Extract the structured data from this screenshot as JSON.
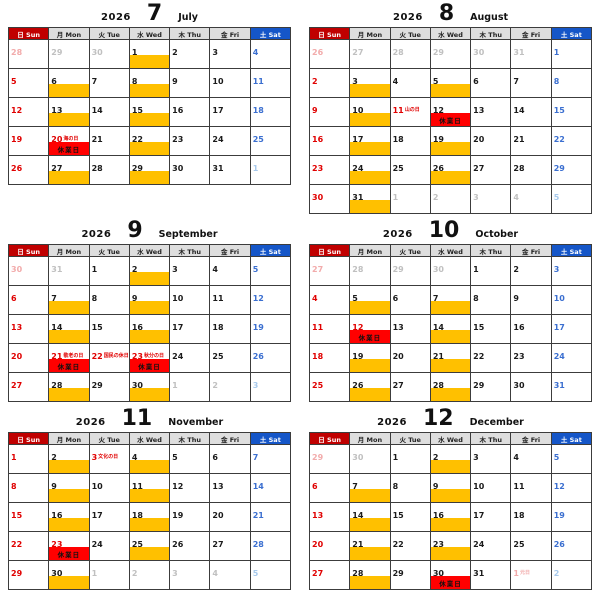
{
  "page": {
    "background": "#FFFFFF"
  },
  "colors": {
    "sunday_header_bg": "#C00000",
    "saturday_header_bg": "#1556C8",
    "weekday_header_bg": "#DEDEDE",
    "event_bar": "#FFC000",
    "closed_bar": "#FF0000",
    "sunday_text": "#E00000",
    "saturday_text": "#3B6FD0",
    "outmonth_text": "#C0C0C0",
    "outmonth_sunday_text": "#F2ABAB",
    "outmonth_saturday_text": "#A7C9EC"
  },
  "day_headers": [
    {
      "label": "日 Sun",
      "type": "sun"
    },
    {
      "label": "月 Mon",
      "type": "weekday"
    },
    {
      "label": "火 Tue",
      "type": "weekday"
    },
    {
      "label": "水 Wed",
      "type": "weekday"
    },
    {
      "label": "木 Thu",
      "type": "weekday"
    },
    {
      "label": "金 Fri",
      "type": "weekday"
    },
    {
      "label": "土 Sat",
      "type": "sat"
    }
  ],
  "months": [
    {
      "year": "2026",
      "number": "7",
      "name": "July",
      "weeks": [
        [
          {
            "day": "28",
            "type": "prevSun"
          },
          {
            "day": "29",
            "type": "prev"
          },
          {
            "day": "30",
            "type": "prev"
          },
          {
            "day": "1",
            "bar": "yellow"
          },
          {
            "day": "2"
          },
          {
            "day": "3"
          },
          {
            "day": "4",
            "type": "sat"
          }
        ],
        [
          {
            "day": "5",
            "type": "sun"
          },
          {
            "day": "6",
            "bar": "yellow"
          },
          {
            "day": "7"
          },
          {
            "day": "8",
            "bar": "yellow"
          },
          {
            "day": "9"
          },
          {
            "day": "10"
          },
          {
            "day": "11",
            "type": "sat"
          }
        ],
        [
          {
            "day": "12",
            "type": "sun"
          },
          {
            "day": "13",
            "bar": "yellow"
          },
          {
            "day": "14"
          },
          {
            "day": "15",
            "bar": "yellow"
          },
          {
            "day": "16"
          },
          {
            "day": "17"
          },
          {
            "day": "18",
            "type": "sat"
          }
        ],
        [
          {
            "day": "19",
            "type": "sun"
          },
          {
            "day": "20",
            "type": "holiday",
            "holiday": "海の日",
            "bar": "red",
            "bar_label": "休業日"
          },
          {
            "day": "21"
          },
          {
            "day": "22",
            "bar": "yellow"
          },
          {
            "day": "23"
          },
          {
            "day": "24"
          },
          {
            "day": "25",
            "type": "sat"
          }
        ],
        [
          {
            "day": "26",
            "type": "sun"
          },
          {
            "day": "27",
            "bar": "yellow"
          },
          {
            "day": "28"
          },
          {
            "day": "29",
            "bar": "yellow"
          },
          {
            "day": "30"
          },
          {
            "day": "31"
          },
          {
            "day": "1",
            "type": "nextSat"
          }
        ]
      ]
    },
    {
      "year": "2026",
      "number": "8",
      "name": "August",
      "weeks": [
        [
          {
            "day": "26",
            "type": "prevSun"
          },
          {
            "day": "27",
            "type": "prev"
          },
          {
            "day": "28",
            "type": "prev"
          },
          {
            "day": "29",
            "type": "prev"
          },
          {
            "day": "30",
            "type": "prev"
          },
          {
            "day": "31",
            "type": "prev"
          },
          {
            "day": "1",
            "type": "sat"
          }
        ],
        [
          {
            "day": "2",
            "type": "sun"
          },
          {
            "day": "3",
            "bar": "yellow"
          },
          {
            "day": "4"
          },
          {
            "day": "5",
            "bar": "yellow"
          },
          {
            "day": "6"
          },
          {
            "day": "7"
          },
          {
            "day": "8",
            "type": "sat"
          }
        ],
        [
          {
            "day": "9",
            "type": "sun"
          },
          {
            "day": "10",
            "bar": "yellow"
          },
          {
            "day": "11",
            "type": "holiday",
            "holiday": "山の日"
          },
          {
            "day": "12",
            "bar": "red",
            "bar_label": "休業日"
          },
          {
            "day": "13"
          },
          {
            "day": "14"
          },
          {
            "day": "15",
            "type": "sat"
          }
        ],
        [
          {
            "day": "16",
            "type": "sun"
          },
          {
            "day": "17",
            "bar": "yellow"
          },
          {
            "day": "18"
          },
          {
            "day": "19",
            "bar": "yellow"
          },
          {
            "day": "20"
          },
          {
            "day": "21"
          },
          {
            "day": "22",
            "type": "sat"
          }
        ],
        [
          {
            "day": "23",
            "type": "sun"
          },
          {
            "day": "24",
            "bar": "yellow"
          },
          {
            "day": "25"
          },
          {
            "day": "26",
            "bar": "yellow"
          },
          {
            "day": "27"
          },
          {
            "day": "28"
          },
          {
            "day": "29",
            "type": "sat"
          }
        ],
        [
          {
            "day": "30",
            "type": "sun"
          },
          {
            "day": "31",
            "bar": "yellow"
          },
          {
            "day": "1",
            "type": "next"
          },
          {
            "day": "2",
            "type": "next"
          },
          {
            "day": "3",
            "type": "next"
          },
          {
            "day": "4",
            "type": "next"
          },
          {
            "day": "5",
            "type": "nextSat"
          }
        ]
      ]
    },
    {
      "year": "2026",
      "number": "9",
      "name": "September",
      "weeks": [
        [
          {
            "day": "30",
            "type": "prevSun"
          },
          {
            "day": "31",
            "type": "prev"
          },
          {
            "day": "1"
          },
          {
            "day": "2",
            "bar": "yellow"
          },
          {
            "day": "3"
          },
          {
            "day": "4"
          },
          {
            "day": "5",
            "type": "sat"
          }
        ],
        [
          {
            "day": "6",
            "type": "sun"
          },
          {
            "day": "7",
            "bar": "yellow"
          },
          {
            "day": "8"
          },
          {
            "day": "9",
            "bar": "yellow"
          },
          {
            "day": "10"
          },
          {
            "day": "11"
          },
          {
            "day": "12",
            "type": "sat"
          }
        ],
        [
          {
            "day": "13",
            "type": "sun"
          },
          {
            "day": "14",
            "bar": "yellow"
          },
          {
            "day": "15"
          },
          {
            "day": "16",
            "bar": "yellow"
          },
          {
            "day": "17"
          },
          {
            "day": "18"
          },
          {
            "day": "19",
            "type": "sat"
          }
        ],
        [
          {
            "day": "20",
            "type": "sun"
          },
          {
            "day": "21",
            "type": "holiday",
            "holiday": "敬老の日",
            "bar": "red",
            "bar_label": "休業日"
          },
          {
            "day": "22",
            "type": "holiday",
            "holiday": "国民の休日"
          },
          {
            "day": "23",
            "type": "holiday",
            "holiday": "秋分の日",
            "bar": "red",
            "bar_label": "休業日"
          },
          {
            "day": "24"
          },
          {
            "day": "25"
          },
          {
            "day": "26",
            "type": "sat"
          }
        ],
        [
          {
            "day": "27",
            "type": "sun"
          },
          {
            "day": "28",
            "bar": "yellow"
          },
          {
            "day": "29"
          },
          {
            "day": "30",
            "bar": "yellow"
          },
          {
            "day": "1",
            "type": "next"
          },
          {
            "day": "2",
            "type": "next"
          },
          {
            "day": "3",
            "type": "nextSat"
          }
        ]
      ]
    },
    {
      "year": "2026",
      "number": "10",
      "name": "October",
      "weeks": [
        [
          {
            "day": "27",
            "type": "prevSun"
          },
          {
            "day": "28",
            "type": "prev"
          },
          {
            "day": "29",
            "type": "prev"
          },
          {
            "day": "30",
            "type": "prev"
          },
          {
            "day": "1"
          },
          {
            "day": "2"
          },
          {
            "day": "3",
            "type": "sat"
          }
        ],
        [
          {
            "day": "4",
            "type": "sun"
          },
          {
            "day": "5",
            "bar": "yellow"
          },
          {
            "day": "6"
          },
          {
            "day": "7",
            "bar": "yellow"
          },
          {
            "day": "8"
          },
          {
            "day": "9"
          },
          {
            "day": "10",
            "type": "sat"
          }
        ],
        [
          {
            "day": "11",
            "type": "sun"
          },
          {
            "day": "12",
            "type": "holiday",
            "holiday": "スポーツの日",
            "bar": "red",
            "bar_label": "休業日"
          },
          {
            "day": "13"
          },
          {
            "day": "14",
            "bar": "yellow"
          },
          {
            "day": "15"
          },
          {
            "day": "16"
          },
          {
            "day": "17",
            "type": "sat"
          }
        ],
        [
          {
            "day": "18",
            "type": "sun"
          },
          {
            "day": "19",
            "bar": "yellow"
          },
          {
            "day": "20"
          },
          {
            "day": "21",
            "bar": "yellow"
          },
          {
            "day": "22"
          },
          {
            "day": "23"
          },
          {
            "day": "24",
            "type": "sat"
          }
        ],
        [
          {
            "day": "25",
            "type": "sun"
          },
          {
            "day": "26",
            "bar": "yellow"
          },
          {
            "day": "27"
          },
          {
            "day": "28",
            "bar": "yellow"
          },
          {
            "day": "29"
          },
          {
            "day": "30"
          },
          {
            "day": "31",
            "type": "sat"
          }
        ]
      ]
    },
    {
      "year": "2026",
      "number": "11",
      "name": "November",
      "weeks": [
        [
          {
            "day": "1",
            "type": "sun"
          },
          {
            "day": "2",
            "bar": "yellow"
          },
          {
            "day": "3",
            "type": "holiday",
            "holiday": "文化の日"
          },
          {
            "day": "4",
            "bar": "yellow"
          },
          {
            "day": "5"
          },
          {
            "day": "6"
          },
          {
            "day": "7",
            "type": "sat"
          }
        ],
        [
          {
            "day": "8",
            "type": "sun"
          },
          {
            "day": "9",
            "bar": "yellow"
          },
          {
            "day": "10"
          },
          {
            "day": "11",
            "bar": "yellow"
          },
          {
            "day": "12"
          },
          {
            "day": "13"
          },
          {
            "day": "14",
            "type": "sat"
          }
        ],
        [
          {
            "day": "15",
            "type": "sun"
          },
          {
            "day": "16",
            "bar": "yellow"
          },
          {
            "day": "17"
          },
          {
            "day": "18",
            "bar": "yellow"
          },
          {
            "day": "19"
          },
          {
            "day": "20"
          },
          {
            "day": "21",
            "type": "sat"
          }
        ],
        [
          {
            "day": "22",
            "type": "sun"
          },
          {
            "day": "23",
            "type": "holiday",
            "holiday": "勤労感謝の日",
            "bar": "red",
            "bar_label": "休業日"
          },
          {
            "day": "24"
          },
          {
            "day": "25",
            "bar": "yellow"
          },
          {
            "day": "26"
          },
          {
            "day": "27"
          },
          {
            "day": "28",
            "type": "sat"
          }
        ],
        [
          {
            "day": "29",
            "type": "sun"
          },
          {
            "day": "30",
            "bar": "yellow"
          },
          {
            "day": "1",
            "type": "next"
          },
          {
            "day": "2",
            "type": "next"
          },
          {
            "day": "3",
            "type": "next"
          },
          {
            "day": "4",
            "type": "next"
          },
          {
            "day": "5",
            "type": "nextSat"
          }
        ]
      ]
    },
    {
      "year": "2026",
      "number": "12",
      "name": "December",
      "weeks": [
        [
          {
            "day": "29",
            "type": "prevSun"
          },
          {
            "day": "30",
            "type": "prev"
          },
          {
            "day": "1"
          },
          {
            "day": "2",
            "bar": "yellow"
          },
          {
            "day": "3"
          },
          {
            "day": "4"
          },
          {
            "day": "5",
            "type": "sat"
          }
        ],
        [
          {
            "day": "6",
            "type": "sun"
          },
          {
            "day": "7",
            "bar": "yellow"
          },
          {
            "day": "8"
          },
          {
            "day": "9",
            "bar": "yellow"
          },
          {
            "day": "10"
          },
          {
            "day": "11"
          },
          {
            "day": "12",
            "type": "sat"
          }
        ],
        [
          {
            "day": "13",
            "type": "sun"
          },
          {
            "day": "14",
            "bar": "yellow"
          },
          {
            "day": "15"
          },
          {
            "day": "16",
            "bar": "yellow"
          },
          {
            "day": "17"
          },
          {
            "day": "18"
          },
          {
            "day": "19",
            "type": "sat"
          }
        ],
        [
          {
            "day": "20",
            "type": "sun"
          },
          {
            "day": "21",
            "bar": "yellow"
          },
          {
            "day": "22"
          },
          {
            "day": "23",
            "bar": "yellow"
          },
          {
            "day": "24"
          },
          {
            "day": "25"
          },
          {
            "day": "26",
            "type": "sat"
          }
        ],
        [
          {
            "day": "27",
            "type": "sun"
          },
          {
            "day": "28",
            "bar": "yellow"
          },
          {
            "day": "29"
          },
          {
            "day": "30",
            "bar": "red",
            "bar_label": "休業日"
          },
          {
            "day": "31"
          },
          {
            "day": "1",
            "type": "nextHoliday",
            "holiday": "元日"
          },
          {
            "day": "2",
            "type": "nextSat"
          }
        ]
      ]
    }
  ]
}
